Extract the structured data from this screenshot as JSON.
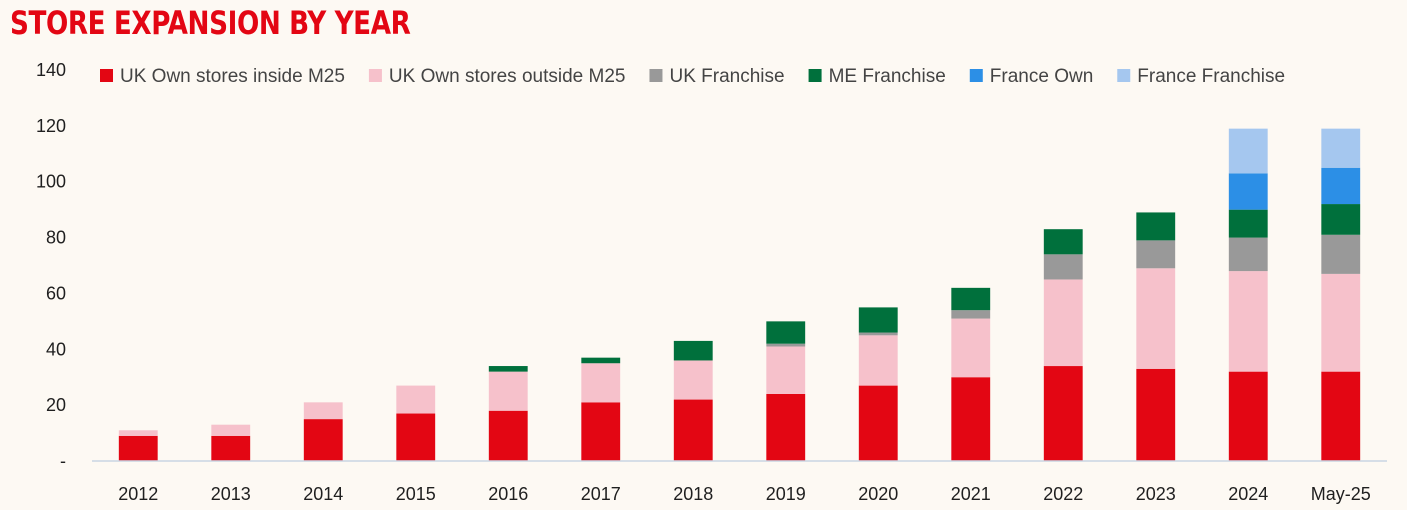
{
  "chart_data": {
    "type": "bar",
    "stacked": true,
    "title": "STORE EXPANSION BY YEAR",
    "xlabel": "",
    "ylabel": "",
    "ylim": [
      0,
      140
    ],
    "y_ticks": [
      {
        "value": 0,
        "label": "-"
      },
      {
        "value": 20,
        "label": "20"
      },
      {
        "value": 40,
        "label": "40"
      },
      {
        "value": 60,
        "label": "60"
      },
      {
        "value": 80,
        "label": "80"
      },
      {
        "value": 100,
        "label": "100"
      },
      {
        "value": 120,
        "label": "120"
      },
      {
        "value": 140,
        "label": "140"
      }
    ],
    "grid": false,
    "legend_position": "top",
    "categories": [
      "2012",
      "2013",
      "2014",
      "2015",
      "2016",
      "2017",
      "2018",
      "2019",
      "2020",
      "2021",
      "2022",
      "2023",
      "2024",
      "May-25"
    ],
    "series": [
      {
        "name": "UK Own stores inside M25",
        "color": "#E30613",
        "values": [
          9,
          9,
          15,
          17,
          18,
          21,
          22,
          24,
          27,
          30,
          34,
          33,
          32,
          32
        ]
      },
      {
        "name": "UK Own stores outside M25",
        "color": "#F6C1CB",
        "values": [
          2,
          4,
          6,
          10,
          14,
          14,
          14,
          17,
          18,
          21,
          31,
          36,
          36,
          35
        ]
      },
      {
        "name": "UK Franchise",
        "color": "#999999",
        "values": [
          0,
          0,
          0,
          0,
          0,
          0,
          0,
          1,
          1,
          3,
          9,
          10,
          12,
          14
        ]
      },
      {
        "name": "ME Franchise",
        "color": "#00703C",
        "values": [
          0,
          0,
          0,
          0,
          2,
          2,
          7,
          8,
          9,
          8,
          9,
          10,
          10,
          11
        ]
      },
      {
        "name": "France Own",
        "color": "#2C8FE6",
        "values": [
          0,
          0,
          0,
          0,
          0,
          0,
          0,
          0,
          0,
          0,
          0,
          0,
          13,
          13
        ]
      },
      {
        "name": "France Franchise",
        "color": "#A5C7EF",
        "values": [
          0,
          0,
          0,
          0,
          0,
          0,
          0,
          0,
          0,
          0,
          0,
          0,
          16,
          14
        ]
      }
    ]
  }
}
